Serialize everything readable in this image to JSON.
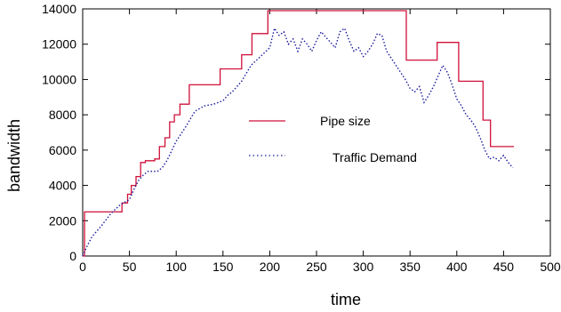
{
  "chart_data": {
    "type": "line",
    "title": "",
    "xlabel": "time",
    "ylabel": "bandwidth",
    "xlim": [
      0,
      500
    ],
    "ylim": [
      0,
      14000
    ],
    "x_ticks": [
      "0",
      "50",
      "100",
      "150",
      "200",
      "250",
      "300",
      "350",
      "400",
      "450",
      "500"
    ],
    "y_ticks": [
      "0",
      "2000",
      "4000",
      "6000",
      "8000",
      "10000",
      "12000",
      "14000"
    ],
    "grid": false,
    "legend_position": "center",
    "colors": {
      "pipe": "#d0103a",
      "demand": "#1a1a9c"
    },
    "series": [
      {
        "name": "Pipe size",
        "style": "solid-step",
        "x": [
          0,
          2,
          2,
          42,
          42,
          48,
          48,
          52,
          52,
          57,
          57,
          62,
          62,
          67,
          67,
          77,
          77,
          82,
          82,
          88,
          88,
          93,
          93,
          98,
          98,
          104,
          104,
          114,
          114,
          147,
          147,
          170,
          170,
          181,
          181,
          198,
          198,
          346,
          346,
          379,
          379,
          402,
          402,
          428,
          428,
          436,
          436,
          461
        ],
        "y": [
          0,
          0,
          2500,
          2500,
          3000,
          3000,
          3500,
          3500,
          4000,
          4000,
          4500,
          4500,
          5300,
          5300,
          5400,
          5400,
          5500,
          5500,
          6200,
          6200,
          6700,
          6700,
          7600,
          7600,
          8000,
          8000,
          8600,
          8600,
          9700,
          9700,
          10600,
          10600,
          11400,
          11400,
          12600,
          12600,
          13900,
          13900,
          11100,
          11100,
          12100,
          12100,
          9900,
          9900,
          7700,
          7700,
          6200,
          6200
        ]
      },
      {
        "name": "Traffic Demand",
        "style": "dotted",
        "x": [
          0,
          5,
          10,
          20,
          30,
          40,
          50,
          55,
          60,
          65,
          70,
          80,
          85,
          90,
          100,
          110,
          120,
          130,
          140,
          150,
          155,
          160,
          170,
          180,
          190,
          200,
          205,
          210,
          215,
          220,
          225,
          230,
          235,
          240,
          245,
          250,
          255,
          260,
          265,
          270,
          275,
          280,
          285,
          290,
          295,
          300,
          305,
          310,
          315,
          320,
          325,
          330,
          335,
          340,
          345,
          350,
          355,
          360,
          365,
          370,
          375,
          380,
          385,
          390,
          395,
          400,
          405,
          410,
          415,
          420,
          425,
          430,
          435,
          440,
          445,
          450,
          455,
          460
        ],
        "y": [
          0,
          600,
          1100,
          1700,
          2400,
          2900,
          3200,
          3800,
          4300,
          4600,
          4800,
          4800,
          5000,
          5400,
          6500,
          7300,
          8200,
          8500,
          8600,
          8800,
          9100,
          9300,
          9900,
          10800,
          11300,
          11800,
          12900,
          12500,
          12700,
          12000,
          12300,
          11600,
          12300,
          12000,
          11600,
          12200,
          12700,
          12400,
          12100,
          11800,
          12700,
          12900,
          12200,
          11600,
          11800,
          11300,
          11600,
          12000,
          12600,
          12500,
          11600,
          11200,
          10800,
          10400,
          10000,
          9500,
          9300,
          9600,
          8700,
          9100,
          9600,
          10200,
          10800,
          10400,
          9700,
          8900,
          8500,
          8000,
          7700,
          7300,
          6700,
          6000,
          5500,
          5600,
          5400,
          5700,
          5300,
          5000
        ]
      }
    ]
  }
}
